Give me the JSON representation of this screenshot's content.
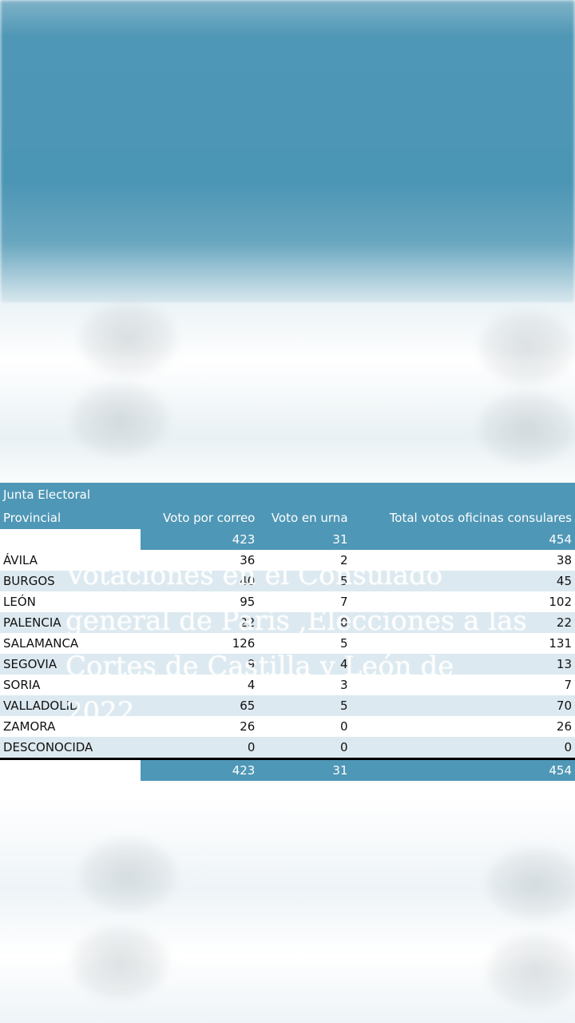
{
  "table": {
    "header_line1": "Junta Electoral",
    "header_line2": "Provincial",
    "col_correo": "Voto por correo",
    "col_urna": "Voto en urna",
    "col_total": "Total votos oficinas consulares",
    "top_totals": {
      "correo": "423",
      "urna": "31",
      "total": "454"
    },
    "rows": [
      {
        "province": "ÁVILA",
        "correo": "36",
        "urna": "2",
        "total": "38"
      },
      {
        "province": "BURGOS",
        "correo": "40",
        "urna": "5",
        "total": "45"
      },
      {
        "province": "LEÓN",
        "correo": "95",
        "urna": "7",
        "total": "102"
      },
      {
        "province": "PALENCIA",
        "correo": "22",
        "urna": "0",
        "total": "22"
      },
      {
        "province": "SALAMANCA",
        "correo": "126",
        "urna": "5",
        "total": "131"
      },
      {
        "province": "SEGOVIA",
        "correo": "9",
        "urna": "4",
        "total": "13"
      },
      {
        "province": "SORIA",
        "correo": "4",
        "urna": "3",
        "total": "7"
      },
      {
        "province": "VALLADOLID",
        "correo": "65",
        "urna": "5",
        "total": "70"
      },
      {
        "province": "ZAMORA",
        "correo": "26",
        "urna": "0",
        "total": "26"
      },
      {
        "province": "DESCONOCIDA",
        "correo": "0",
        "urna": "0",
        "total": "0"
      }
    ],
    "bottom_totals": {
      "correo": "423",
      "urna": "31",
      "total": "454"
    }
  },
  "overlay_title": "Votaciones en el Consulado general de Paris ,Elecciones a las Cortes de Castilla y León de 2022",
  "colors": {
    "header_blue": "#4f97b6",
    "stripe": "#dce9f0"
  }
}
